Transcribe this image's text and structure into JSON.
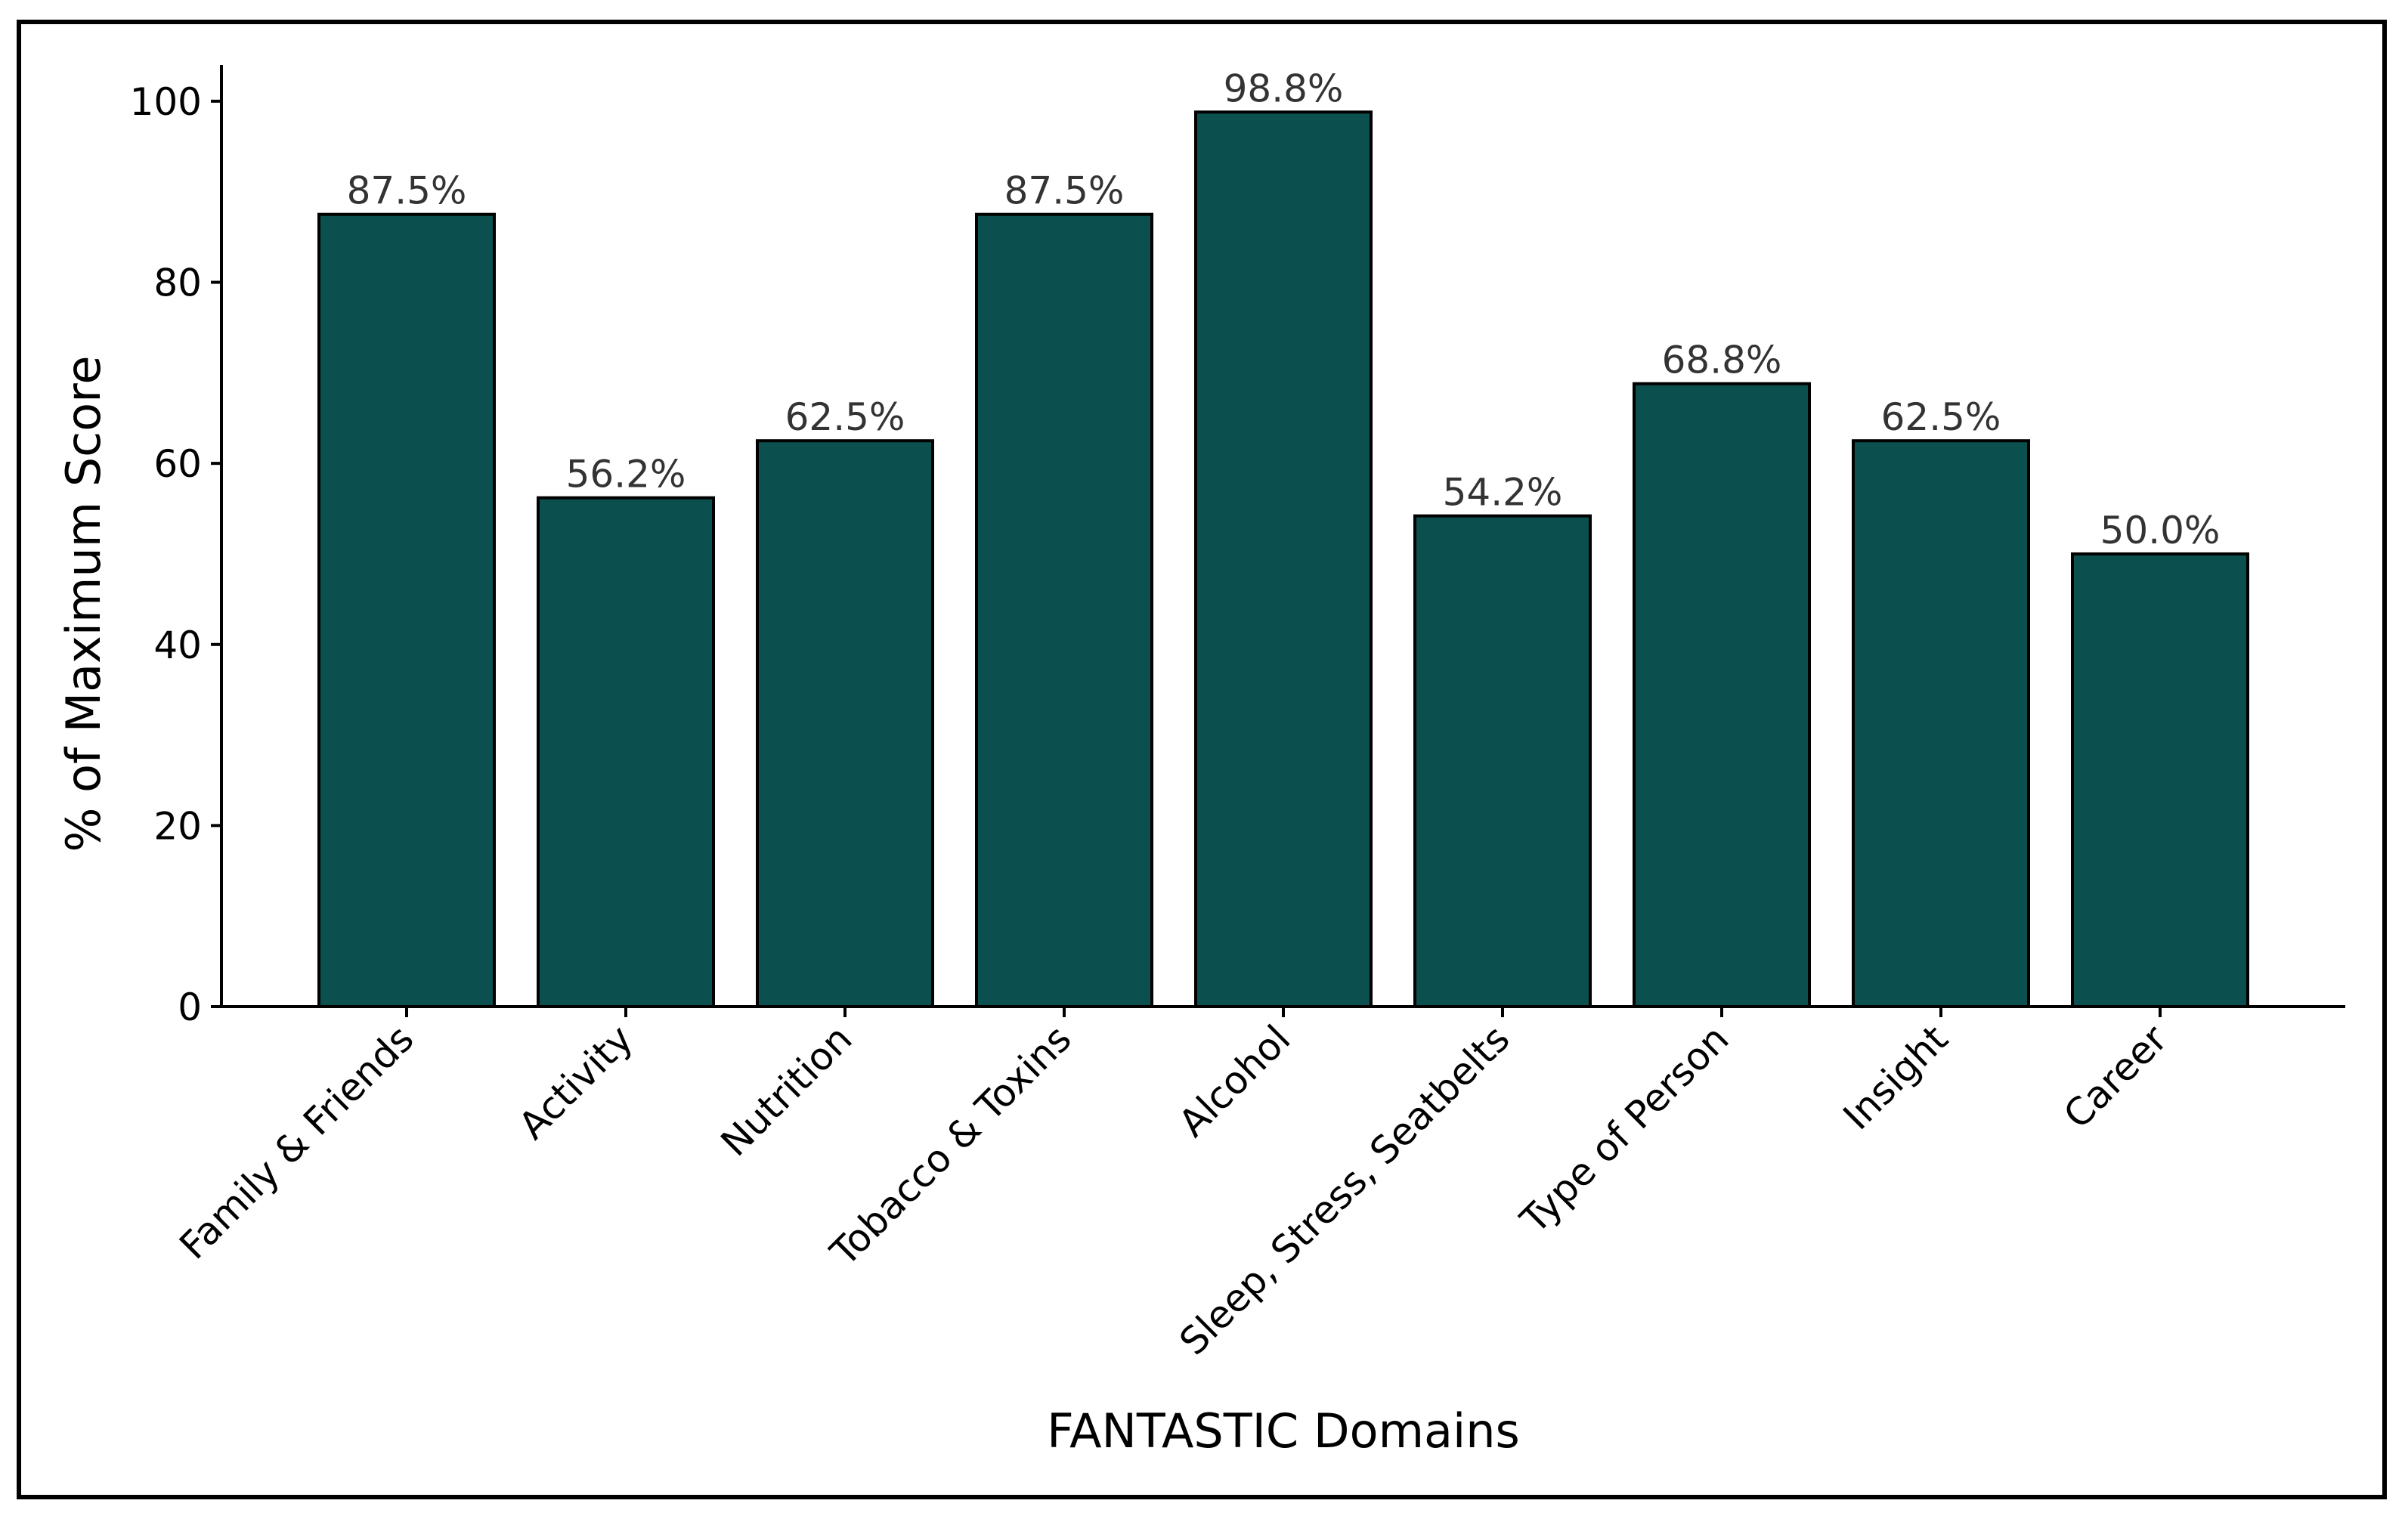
{
  "chart_data": {
    "type": "bar",
    "xlabel": "FANTASTIC Domains",
    "ylabel": "% of Maximum Score",
    "categories": [
      "Family & Friends",
      "Activity",
      "Nutrition",
      "Tobacco & Toxins",
      "Alcohol",
      "Sleep, Stress, Seatbelts",
      "Type of Person",
      "Insight",
      "Career"
    ],
    "values": [
      87.5,
      56.2,
      62.5,
      87.5,
      98.8,
      54.2,
      68.8,
      62.5,
      50.0
    ],
    "data_labels": [
      "87.5%",
      "56.2%",
      "62.5%",
      "87.5%",
      "98.8%",
      "54.2%",
      "68.8%",
      "62.5%",
      "50.0%"
    ],
    "yticks": [
      0,
      20,
      40,
      60,
      80,
      100
    ],
    "ylim": [
      0,
      104
    ],
    "grid": false,
    "colors": {
      "bar": "#0b4f4e",
      "bar_edge": "#000000"
    }
  }
}
